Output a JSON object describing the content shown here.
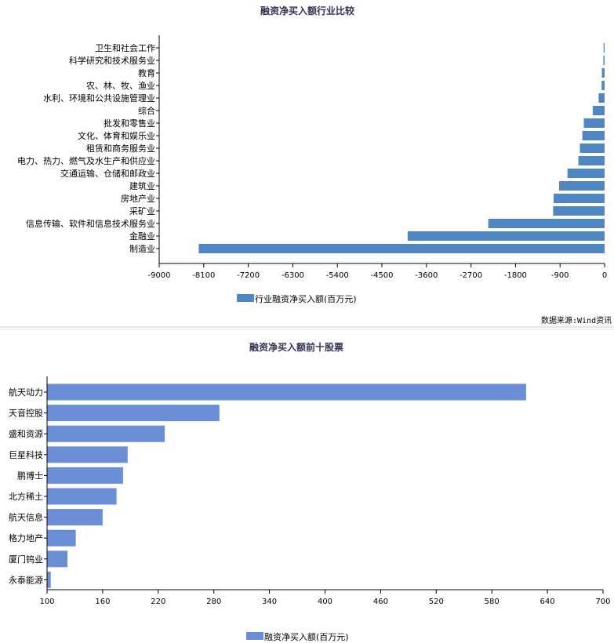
{
  "chart_data": [
    {
      "type": "bar",
      "orientation": "horizontal",
      "title": "融资净买入额行业比较",
      "categories": [
        "卫生和社会工作",
        "科学研究和技术服务业",
        "教育",
        "农、林、牧、渔业",
        "水利、环境和公共设施管理业",
        "综合",
        "批发和零售业",
        "文化、体育和娱乐业",
        "租赁和商务服务业",
        "电力、热力、燃气及水生产和供应业",
        "交通运输、仓储和邮政业",
        "建筑业",
        "房地产业",
        "采矿业",
        "信息传输、软件和信息技术服务业",
        "金融业",
        "制造业"
      ],
      "series": [
        {
          "name": "行业融资净买入额(百万元)",
          "values": [
            -20,
            -25,
            -55,
            -60,
            -120,
            -240,
            -420,
            -450,
            -500,
            -530,
            -750,
            -920,
            -1030,
            -1040,
            -2350,
            -3980,
            -8200
          ]
        }
      ],
      "xlim": [
        -9000,
        0
      ],
      "xticks": [
        "-9000",
        "-8100",
        "-7200",
        "-6300",
        "-5400",
        "-4500",
        "-3600",
        "-2700",
        "-1800",
        "-900",
        "0"
      ],
      "color": "#4f86c6",
      "legend_position": "bottom",
      "source": "数据来源:Wind资讯"
    },
    {
      "type": "bar",
      "orientation": "horizontal",
      "title": "融资净买入额前十股票",
      "categories": [
        "航天动力",
        "天音控股",
        "盛和资源",
        "巨星科技",
        "鹏博士",
        "北方稀土",
        "航天信息",
        "格力地产",
        "厦门钨业",
        "永泰能源"
      ],
      "series": [
        {
          "name": "融资净买入额(百万元)",
          "values": [
            617,
            286,
            227,
            187,
            182,
            175,
            160,
            131,
            122,
            104
          ]
        }
      ],
      "xlim": [
        100,
        700
      ],
      "xticks": [
        "100",
        "160",
        "220",
        "280",
        "340",
        "400",
        "460",
        "520",
        "580",
        "640",
        "700"
      ],
      "color": "#6a8fd6",
      "legend_position": "bottom"
    }
  ]
}
